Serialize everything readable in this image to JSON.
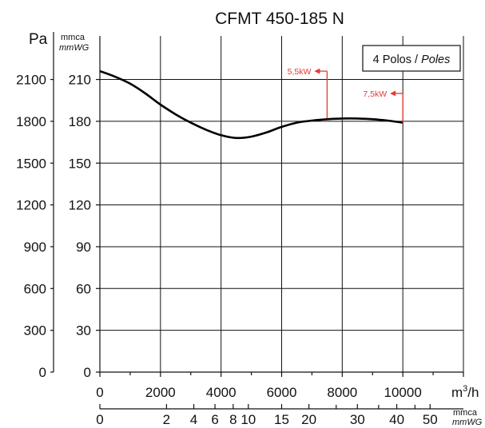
{
  "chart_data": {
    "type": "line",
    "title": "CFMT 450-185 N",
    "legend": {
      "label": "4 Polos /",
      "label_italic": "Poles",
      "placement": "top-right"
    },
    "left_axis_pa": {
      "unit": "Pa",
      "ticks": [
        "0",
        "300",
        "600",
        "900",
        "1200",
        "1500",
        "1800",
        "2100"
      ]
    },
    "left_axis_mmca": {
      "unit": "mmca",
      "unit_italic": "mmWG",
      "ticks": [
        "0",
        "30",
        "60",
        "90",
        "120",
        "150",
        "180",
        "210"
      ]
    },
    "x_axis_flow": {
      "unit": "m³/h",
      "unit_base": "m",
      "unit_sup": "3",
      "unit_tail": "/h",
      "ticks": [
        "0",
        "2000",
        "4000",
        "6000",
        "8000",
        "10000"
      ],
      "xlim": [
        0,
        12000
      ]
    },
    "x_axis_pressure": {
      "unit": "mmca",
      "unit_italic": "mmWG",
      "ticks": [
        {
          "label": "0",
          "flow": 0
        },
        {
          "label": "2",
          "flow": 2200
        },
        {
          "label": "4",
          "flow": 3100
        },
        {
          "label": "6",
          "flow": 3800
        },
        {
          "label": "8",
          "flow": 4400
        },
        {
          "label": "10",
          "flow": 4900
        },
        {
          "label": "15",
          "flow": 6000
        },
        {
          "label": "20",
          "flow": 6900
        },
        {
          "label": "30",
          "flow": 8500
        },
        {
          "label": "40",
          "flow": 9800
        },
        {
          "label": "50",
          "flow": 10900
        }
      ],
      "minor_ticks_flow": [
        7800,
        9200,
        10400
      ]
    },
    "ylim_mmca": [
      0,
      230
    ],
    "grid": true,
    "series": [
      {
        "x": [
          0,
          500,
          1000,
          1500,
          2000,
          2500,
          3000,
          3500,
          4000,
          4500,
          5000,
          5500,
          6000,
          6500,
          7000,
          7500,
          8000,
          8500,
          9000,
          9500,
          10000
        ],
        "y": [
          216,
          212,
          207,
          200,
          192,
          185,
          179,
          174,
          170,
          168,
          169,
          172,
          176,
          179,
          180.5,
          181.5,
          182,
          182,
          181.5,
          180.5,
          179
        ],
        "color": "#000000"
      }
    ],
    "annotations": [
      {
        "text": "5,5kW",
        "flow": 7500,
        "mmca": 216,
        "end_mmca": 182,
        "color": "#e53935"
      },
      {
        "text": "7,5kW",
        "flow": 10000,
        "mmca": 200,
        "end_mmca": 179,
        "color": "#e53935"
      }
    ]
  }
}
